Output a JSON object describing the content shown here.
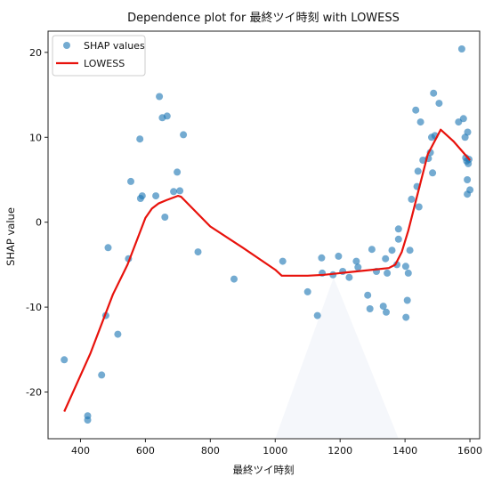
{
  "chart_data": {
    "type": "scatter",
    "title": "Dependence plot for 最終ツイ時刻 with LOWESS",
    "xlabel": "最終ツイ時刻",
    "ylabel": "SHAP value",
    "xlim": [
      300,
      1630
    ],
    "ylim": [
      -25.5,
      22.5
    ],
    "xticks": [
      400,
      600,
      800,
      1000,
      1200,
      1400,
      1600
    ],
    "yticks": [
      -20,
      -10,
      0,
      10,
      20
    ],
    "grid": false,
    "legend_position": "top-left",
    "series": [
      {
        "name": "SHAP values",
        "kind": "scatter",
        "color": "#1f77b4",
        "points": [
          [
            350,
            -16.2
          ],
          [
            422,
            -22.8
          ],
          [
            422,
            -23.3
          ],
          [
            465,
            -18.0
          ],
          [
            478,
            -11.0
          ],
          [
            485,
            -3.0
          ],
          [
            515,
            -13.2
          ],
          [
            548,
            -4.3
          ],
          [
            555,
            4.8
          ],
          [
            583,
            9.8
          ],
          [
            585,
            2.8
          ],
          [
            590,
            3.1
          ],
          [
            632,
            3.1
          ],
          [
            643,
            14.8
          ],
          [
            652,
            12.3
          ],
          [
            660,
            0.6
          ],
          [
            667,
            12.5
          ],
          [
            687,
            3.6
          ],
          [
            698,
            5.9
          ],
          [
            706,
            3.7
          ],
          [
            717,
            10.3
          ],
          [
            762,
            -3.5
          ],
          [
            873,
            -6.7
          ],
          [
            1023,
            -4.6
          ],
          [
            1100,
            -8.2
          ],
          [
            1130,
            -11.0
          ],
          [
            1143,
            -4.2
          ],
          [
            1145,
            -6.0
          ],
          [
            1178,
            -6.2
          ],
          [
            1195,
            -4.0
          ],
          [
            1208,
            -5.8
          ],
          [
            1228,
            -6.5
          ],
          [
            1250,
            -4.6
          ],
          [
            1255,
            -5.3
          ],
          [
            1285,
            -8.6
          ],
          [
            1292,
            -10.2
          ],
          [
            1298,
            -3.2
          ],
          [
            1312,
            -5.8
          ],
          [
            1333,
            -9.9
          ],
          [
            1340,
            -4.3
          ],
          [
            1342,
            -10.6
          ],
          [
            1345,
            -6.0
          ],
          [
            1360,
            -3.3
          ],
          [
            1375,
            -5.0
          ],
          [
            1380,
            -0.8
          ],
          [
            1380,
            -2.0
          ],
          [
            1402,
            -5.2
          ],
          [
            1403,
            -11.2
          ],
          [
            1407,
            -9.2
          ],
          [
            1410,
            -6.0
          ],
          [
            1415,
            -3.3
          ],
          [
            1420,
            2.7
          ],
          [
            1433,
            13.2
          ],
          [
            1437,
            4.2
          ],
          [
            1440,
            6.0
          ],
          [
            1443,
            1.8
          ],
          [
            1448,
            11.8
          ],
          [
            1455,
            7.3
          ],
          [
            1472,
            7.5
          ],
          [
            1478,
            8.2
          ],
          [
            1482,
            10.0
          ],
          [
            1485,
            5.8
          ],
          [
            1488,
            15.2
          ],
          [
            1492,
            10.2
          ],
          [
            1505,
            14.0
          ],
          [
            1565,
            11.8
          ],
          [
            1575,
            20.4
          ],
          [
            1580,
            12.2
          ],
          [
            1585,
            10.0
          ],
          [
            1587,
            7.6
          ],
          [
            1590,
            7.2
          ],
          [
            1592,
            5.0
          ],
          [
            1592,
            3.3
          ],
          [
            1593,
            10.6
          ],
          [
            1595,
            6.9
          ],
          [
            1597,
            7.4
          ],
          [
            1600,
            3.8
          ]
        ]
      },
      {
        "name": "LOWESS",
        "kind": "line",
        "color": "#e8120c",
        "points": [
          [
            350,
            -22.3
          ],
          [
            430,
            -15.5
          ],
          [
            500,
            -8.5
          ],
          [
            545,
            -5.0
          ],
          [
            580,
            -1.5
          ],
          [
            600,
            0.5
          ],
          [
            620,
            1.6
          ],
          [
            640,
            2.2
          ],
          [
            665,
            2.6
          ],
          [
            700,
            3.1
          ],
          [
            710,
            3.0
          ],
          [
            800,
            -0.5
          ],
          [
            900,
            -3.0
          ],
          [
            1000,
            -5.6
          ],
          [
            1020,
            -6.3
          ],
          [
            1100,
            -6.3
          ],
          [
            1150,
            -6.2
          ],
          [
            1200,
            -6.0
          ],
          [
            1250,
            -5.8
          ],
          [
            1300,
            -5.6
          ],
          [
            1350,
            -5.4
          ],
          [
            1370,
            -5.0
          ],
          [
            1390,
            -3.5
          ],
          [
            1410,
            -1.0
          ],
          [
            1440,
            3.5
          ],
          [
            1470,
            8.0
          ],
          [
            1510,
            10.9
          ],
          [
            1550,
            9.5
          ],
          [
            1600,
            7.3
          ]
        ]
      }
    ]
  }
}
